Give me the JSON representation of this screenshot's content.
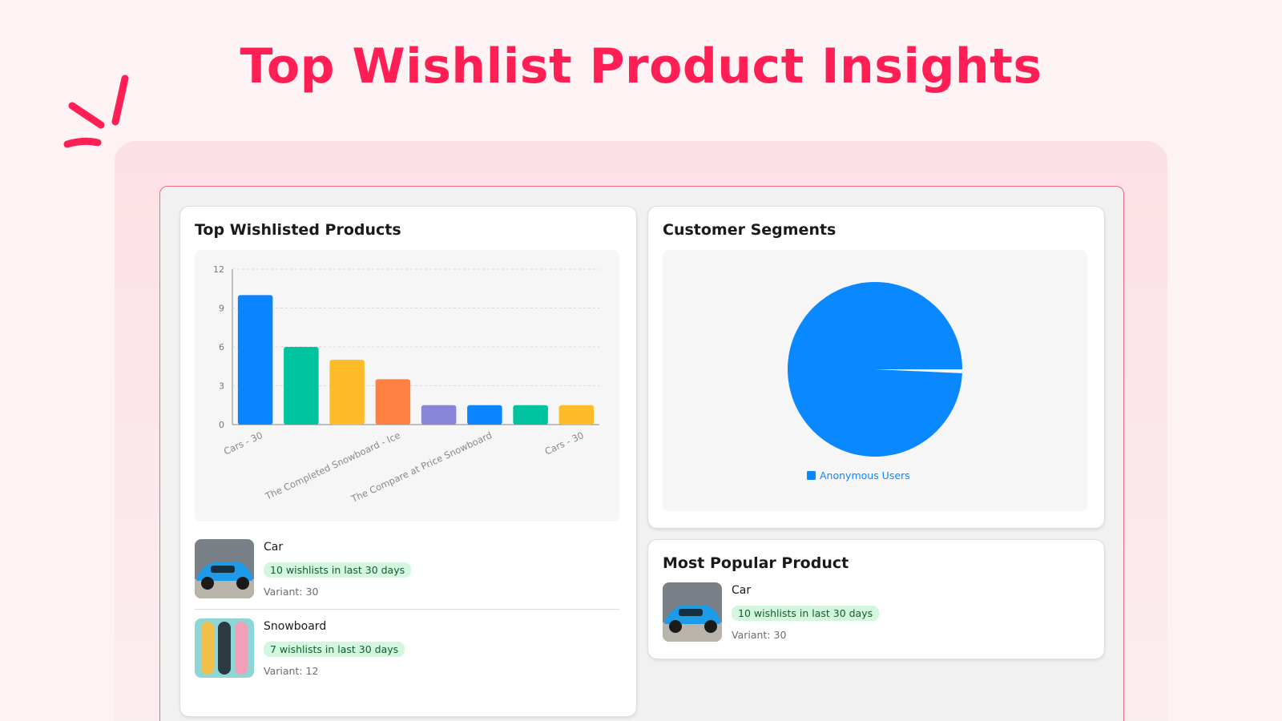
{
  "header": {
    "title": "Top Wishlist Product Insights"
  },
  "top_products": {
    "title": "Top Wishlisted Products",
    "chart_data": {
      "type": "bar",
      "categories": [
        "Cars - 30",
        null,
        null,
        "The Completed Snowboard - Ice",
        null,
        "The Compare at Price Snowboard",
        null,
        "Cars - 30"
      ],
      "values": [
        10,
        6,
        5,
        3.5,
        1.5,
        1.5,
        1.5,
        1.5
      ],
      "colors": [
        "#0a84ff",
        "#00c49f",
        "#ffbb28",
        "#ff8042",
        "#8884d8",
        "#0a84ff",
        "#00c49f",
        "#ffbb28"
      ],
      "ylim": [
        0,
        12
      ],
      "yticks": [
        0,
        3,
        6,
        9,
        12
      ],
      "grid": true
    },
    "items": [
      {
        "name": "Car",
        "badge": "10 wishlists in last 30 days",
        "variant": "Variant: 30"
      },
      {
        "name": "Snowboard",
        "badge": "7 wishlists in last 30 days",
        "variant": "Variant: 12"
      }
    ]
  },
  "segments": {
    "title": "Customer Segments",
    "chart_data": {
      "type": "pie",
      "categories": [
        "Anonymous Users"
      ],
      "values": [
        100
      ],
      "colors": [
        "#0a88ff"
      ],
      "legend": "bottom"
    }
  },
  "popular": {
    "title": "Most Popular Product",
    "item": {
      "name": "Car",
      "badge": "10 wishlists in last 30 days",
      "variant": "Variant: 30"
    }
  }
}
